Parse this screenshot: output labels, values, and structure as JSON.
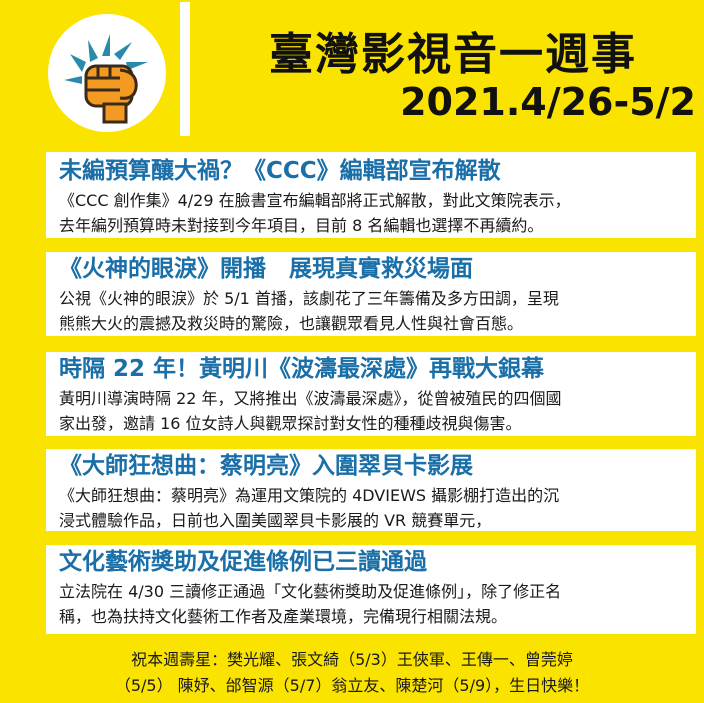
{
  "logo": {
    "icon": "fist-burst-icon",
    "colors": {
      "burst": "#2a8aab",
      "fist": "#f29a22",
      "fist_stroke": "#3a2a1a",
      "circle": "#ffffff"
    }
  },
  "header": {
    "title": "臺灣影視音一週事",
    "date_range": "2021.4/26-5/2"
  },
  "colors": {
    "background": "#FBE300",
    "card_title": "#1a6fa8",
    "card_text": "#1a1a1a"
  },
  "cards": [
    {
      "title": "未編預算釀大禍？《CCC》編輯部宣布解散",
      "lines": [
        "《CCC 創作集》4/29 在臉書宣布編輯部將正式解散，對此文策院表示，",
        "去年編列預算時未對接到今年項目，目前 8 名編輯也選擇不再續約。"
      ]
    },
    {
      "title": "《火神的眼淚》開播　展現真實救災場面",
      "lines": [
        "公視《火神的眼淚》於 5/1 首播，該劇花了三年籌備及多方田調，呈現",
        "熊熊大火的震撼及救災時的驚險，也讓觀眾看見人性與社會百態。"
      ]
    },
    {
      "title": "時隔 22 年！黃明川《波濤最深處》再戰大銀幕",
      "lines": [
        "黃明川導演時隔 22 年，又將推出《波濤最深處》，從曾被殖民的四個國",
        "家出發，邀請 16 位女詩人與觀眾探討對女性的種種歧視與傷害。"
      ]
    },
    {
      "title": "《大師狂想曲：蔡明亮》入圍翠貝卡影展",
      "lines": [
        "《大師狂想曲：蔡明亮》為運用文策院的 4DVIEWS 攝影棚打造出的沉",
        "浸式體驗作品，日前也入圍美國翠貝卡影展的 VR 競賽單元，"
      ]
    },
    {
      "title": "文化藝術獎助及促進條例已三讀通過",
      "lines": [
        "立法院在 4/30 三讀修正通過「文化藝術獎助及促進條例」，除了修正名",
        "稱，也為扶持文化藝術工作者及產業環境，完備現行相關法規。"
      ]
    }
  ],
  "footer": {
    "lines": [
      "祝本週壽星：樊光耀、張文綺（5/3）王俠軍、王傳一、曾莞婷",
      "（5/5） 陳妤、邰智源（5/7）翁立友、陳楚河（5/9），生日快樂！"
    ]
  }
}
